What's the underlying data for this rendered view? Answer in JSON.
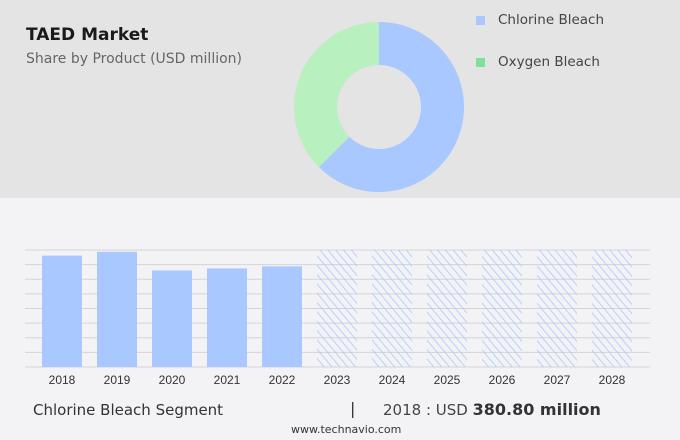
{
  "chart_data": [
    {
      "type": "pie",
      "title": "TAED Market",
      "subtitle": "Share by Product (USD million)",
      "donut": true,
      "slices": [
        {
          "label": "Chlorine Bleach",
          "share": 62.5,
          "color": "#a8c8ff"
        },
        {
          "label": "Oxygen Bleach",
          "share": 37.5,
          "color": "#b8f0c0"
        }
      ],
      "legend": [
        {
          "label": "Chlorine Bleach",
          "color": "#a8c8ff"
        },
        {
          "label": "Oxygen Bleach",
          "color": "#7ee09a"
        }
      ],
      "legend_position": "right"
    },
    {
      "type": "bar",
      "categories": [
        "2018",
        "2019",
        "2020",
        "2021",
        "2022",
        "2023",
        "2024",
        "2025",
        "2026",
        "2027",
        "2028"
      ],
      "values": [
        380.8,
        394,
        330,
        337,
        344,
        null,
        null,
        null,
        null,
        null,
        null
      ],
      "forecast_from": "2023",
      "ylim": [
        0,
        400
      ],
      "grid": true,
      "color": "#a8c8ff",
      "segment_label": "Chlorine Bleach Segment",
      "separator": "|",
      "highlight_prefix": "2018 : USD",
      "highlight_value": "380.80 million"
    }
  ],
  "footer": {
    "source": "www.technavio.com"
  }
}
